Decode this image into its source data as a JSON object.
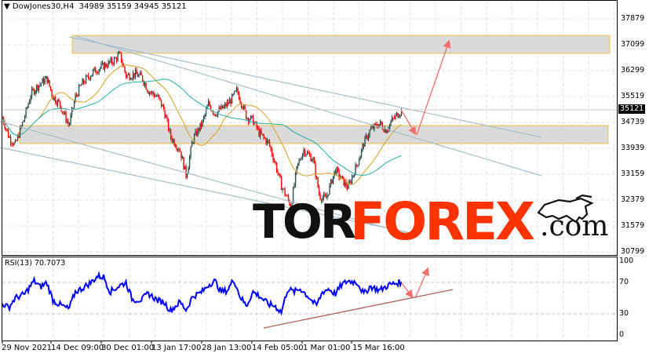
{
  "header": {
    "symbol": "DowJones30,H4",
    "ohlc": "34989 35159 34945 35121",
    "menu_icon": "triangle-down-icon"
  },
  "price_axis": {
    "ticks": [
      "37879",
      "37099",
      "36299",
      "35519",
      "34739",
      "33939",
      "33159",
      "32379",
      "31579",
      "30799"
    ],
    "current": "35121"
  },
  "rsi": {
    "label": "RSI(13) 70.7073",
    "ticks": [
      "100",
      "70",
      "30",
      "0"
    ]
  },
  "time_axis": {
    "ticks": [
      "29 Nov 2021",
      "14 Dec 09:00",
      "30 Dec 01:00",
      "13 Jan 17:00",
      "28 Jan 13:00",
      "14 Feb 05:00",
      "1 Mar 01:00",
      "15 Mar 16:00"
    ]
  },
  "logo": {
    "part1": "TOR",
    "part2": "FOREX",
    "part3": ".com",
    "icon": "bull-icon"
  },
  "colors": {
    "bull": "#2f4f4f",
    "bear": "#ff0000",
    "ma_fast": "#d9a020",
    "ma_slow": "#20b0a0",
    "zone_fill": "#d9d9d9",
    "zone_border": "#f0c040",
    "trendline": "#a9bdc9",
    "arrow": "#f07070",
    "rsi_line": "#0000ff",
    "rsi_trend": "#b06060",
    "logo_red": "#ff3300"
  },
  "chart_data": [
    {
      "type": "candlestick",
      "title": "DowJones30,H4",
      "ylim": [
        30799,
        37879
      ],
      "grid": true,
      "current_price": 35121,
      "zones": [
        {
          "from": 36850,
          "to": 37400
        },
        {
          "from": 33940,
          "to": 34490
        }
      ],
      "price_path": [
        [
          "2021-11-29",
          34880
        ],
        [
          "2021-12-01",
          34300
        ],
        [
          "2021-12-03",
          34040
        ],
        [
          "2021-12-06",
          34900
        ],
        [
          "2021-12-08",
          35600
        ],
        [
          "2021-12-10",
          35830
        ],
        [
          "2021-12-13",
          36070
        ],
        [
          "2021-12-15",
          35500
        ],
        [
          "2021-12-17",
          35300
        ],
        [
          "2021-12-20",
          34640
        ],
        [
          "2021-12-22",
          35500
        ],
        [
          "2021-12-24",
          35900
        ],
        [
          "2021-12-28",
          36300
        ],
        [
          "2021-12-30",
          36400
        ],
        [
          "2022-01-03",
          36600
        ],
        [
          "2022-01-05",
          36800
        ],
        [
          "2022-01-07",
          36150
        ],
        [
          "2022-01-10",
          36200
        ],
        [
          "2022-01-12",
          36100
        ],
        [
          "2022-01-14",
          35700
        ],
        [
          "2022-01-17",
          35500
        ],
        [
          "2022-01-19",
          35100
        ],
        [
          "2022-01-21",
          34300
        ],
        [
          "2022-01-24",
          33900
        ],
        [
          "2022-01-26",
          33100
        ],
        [
          "2022-01-28",
          34200
        ],
        [
          "2022-01-31",
          34700
        ],
        [
          "2022-02-02",
          35300
        ],
        [
          "2022-02-04",
          35000
        ],
        [
          "2022-02-07",
          35200
        ],
        [
          "2022-02-09",
          35400
        ],
        [
          "2022-02-11",
          35700
        ],
        [
          "2022-02-14",
          34900
        ],
        [
          "2022-02-16",
          34800
        ],
        [
          "2022-02-18",
          34400
        ],
        [
          "2022-02-21",
          34100
        ],
        [
          "2022-02-23",
          33500
        ],
        [
          "2022-02-25",
          32800
        ],
        [
          "2022-02-28",
          32200
        ],
        [
          "2022-03-02",
          33400
        ],
        [
          "2022-03-04",
          33900
        ],
        [
          "2022-03-07",
          33600
        ],
        [
          "2022-03-09",
          32500
        ],
        [
          "2022-03-11",
          32400
        ],
        [
          "2022-03-14",
          33300
        ],
        [
          "2022-03-16",
          33000
        ],
        [
          "2022-03-18",
          32750
        ],
        [
          "2022-03-21",
          33500
        ],
        [
          "2022-03-23",
          34100
        ],
        [
          "2022-03-25",
          34500
        ],
        [
          "2022-03-28",
          34700
        ],
        [
          "2022-03-30",
          34500
        ],
        [
          "2022-04-01",
          34800
        ],
        [
          "2022-04-04",
          35121
        ]
      ]
    },
    {
      "type": "line",
      "title": "RSI(13)",
      "ylim": [
        0,
        100
      ],
      "levels": [
        70,
        30
      ],
      "last_value": 70.7073,
      "rsi_path": [
        [
          "2021-11-29",
          43
        ],
        [
          "2021-12-01",
          38
        ],
        [
          "2021-12-03",
          50
        ],
        [
          "2021-12-06",
          55
        ],
        [
          "2021-12-09",
          72
        ],
        [
          "2021-12-11",
          64
        ],
        [
          "2021-12-13",
          70
        ],
        [
          "2021-12-15",
          47
        ],
        [
          "2021-12-17",
          42
        ],
        [
          "2021-12-20",
          36
        ],
        [
          "2021-12-22",
          58
        ],
        [
          "2021-12-24",
          62
        ],
        [
          "2021-12-27",
          70
        ],
        [
          "2021-12-29",
          78
        ],
        [
          "2021-12-31",
          77
        ],
        [
          "2022-01-02",
          58
        ],
        [
          "2022-01-05",
          66
        ],
        [
          "2022-01-07",
          70
        ],
        [
          "2022-01-09",
          48
        ],
        [
          "2022-01-12",
          48
        ],
        [
          "2022-01-14",
          56
        ],
        [
          "2022-01-17",
          47
        ],
        [
          "2022-01-19",
          45
        ],
        [
          "2022-01-21",
          34
        ],
        [
          "2022-01-24",
          45
        ],
        [
          "2022-01-26",
          35
        ],
        [
          "2022-01-28",
          52
        ],
        [
          "2022-01-31",
          58
        ],
        [
          "2022-02-02",
          67
        ],
        [
          "2022-02-04",
          72
        ],
        [
          "2022-02-06",
          58
        ],
        [
          "2022-02-08",
          60
        ],
        [
          "2022-02-10",
          74
        ],
        [
          "2022-02-12",
          52
        ],
        [
          "2022-02-14",
          40
        ],
        [
          "2022-02-16",
          58
        ],
        [
          "2022-02-18",
          53
        ],
        [
          "2022-02-21",
          42
        ],
        [
          "2022-02-23",
          40
        ],
        [
          "2022-02-25",
          32
        ],
        [
          "2022-02-27",
          62
        ],
        [
          "2022-03-01",
          58
        ],
        [
          "2022-03-03",
          62
        ],
        [
          "2022-03-06",
          50
        ],
        [
          "2022-03-08",
          40
        ],
        [
          "2022-03-10",
          58
        ],
        [
          "2022-03-12",
          62
        ],
        [
          "2022-03-14",
          55
        ],
        [
          "2022-03-16",
          67
        ],
        [
          "2022-03-18",
          72
        ],
        [
          "2022-03-21",
          70
        ],
        [
          "2022-03-23",
          55
        ],
        [
          "2022-03-25",
          65
        ],
        [
          "2022-03-28",
          60
        ],
        [
          "2022-03-31",
          67
        ],
        [
          "2022-04-04",
          70.7
        ]
      ]
    }
  ]
}
